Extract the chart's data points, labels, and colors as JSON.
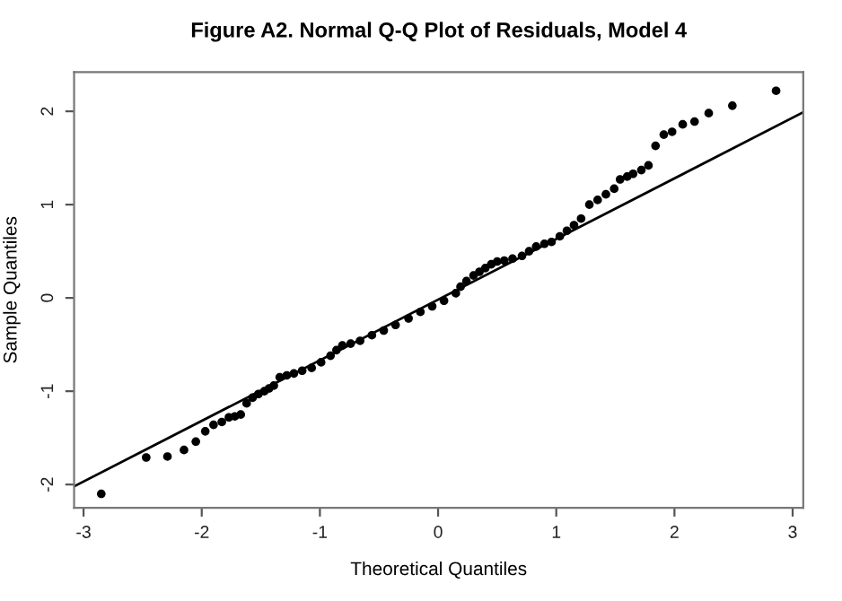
{
  "chart_data": {
    "type": "scatter",
    "title": "Figure A2. Normal Q-Q Plot of Residuals, Model 4",
    "xlabel": "Theoretical Quantiles",
    "ylabel": "Sample Quantiles",
    "xlim": [
      -3.08,
      3.09
    ],
    "ylim": [
      -2.25,
      2.42
    ],
    "xticks": [
      -3,
      -2,
      -1,
      0,
      1,
      2,
      3
    ],
    "yticks": [
      -2,
      -1,
      0,
      1,
      2
    ],
    "grid": false,
    "legend": false,
    "marker": "circle",
    "series": [
      {
        "color": "#000000",
        "x": [
          -2.85,
          -2.47,
          -2.29,
          -2.15,
          -2.05,
          -1.97,
          -1.9,
          -1.83,
          -1.77,
          -1.72,
          -1.67,
          -1.62,
          -1.57,
          -1.52,
          -1.47,
          -1.43,
          -1.39,
          -1.34,
          -1.28,
          -1.22,
          -1.15,
          -1.07,
          -0.99,
          -0.91,
          -0.86,
          -0.81,
          -0.74,
          -0.66,
          -0.56,
          -0.46,
          -0.36,
          -0.25,
          -0.15,
          -0.05,
          0.05,
          0.15,
          0.19,
          0.24,
          0.3,
          0.35,
          0.4,
          0.45,
          0.5,
          0.56,
          0.63,
          0.71,
          0.77,
          0.83,
          0.9,
          0.96,
          1.03,
          1.09,
          1.15,
          1.21,
          1.28,
          1.35,
          1.42,
          1.49,
          1.54,
          1.6,
          1.65,
          1.72,
          1.78,
          1.84,
          1.91,
          1.98,
          2.07,
          2.17,
          2.29,
          2.49,
          2.86
        ],
        "values": [
          -2.1,
          -1.71,
          -1.7,
          -1.63,
          -1.54,
          -1.43,
          -1.36,
          -1.33,
          -1.28,
          -1.27,
          -1.25,
          -1.13,
          -1.07,
          -1.03,
          -1.0,
          -0.97,
          -0.94,
          -0.85,
          -0.83,
          -0.81,
          -0.78,
          -0.75,
          -0.69,
          -0.62,
          -0.56,
          -0.51,
          -0.49,
          -0.46,
          -0.4,
          -0.35,
          -0.29,
          -0.22,
          -0.15,
          -0.09,
          -0.03,
          0.05,
          0.12,
          0.18,
          0.24,
          0.28,
          0.32,
          0.36,
          0.39,
          0.4,
          0.42,
          0.45,
          0.5,
          0.55,
          0.58,
          0.6,
          0.66,
          0.72,
          0.78,
          0.85,
          1.0,
          1.05,
          1.11,
          1.17,
          1.27,
          1.3,
          1.33,
          1.37,
          1.42,
          1.63,
          1.75,
          1.78,
          1.86,
          1.89,
          1.98,
          2.06,
          2.22
        ]
      },
      {
        "type": "line",
        "color": "#000000",
        "marker": "none",
        "x": [
          -3.08,
          3.09
        ],
        "values": [
          -2.02,
          1.99
        ]
      }
    ]
  }
}
